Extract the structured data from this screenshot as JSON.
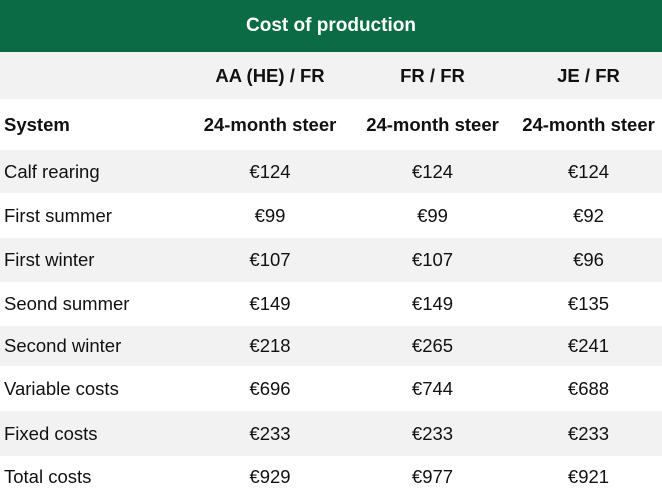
{
  "title": "Cost of production",
  "header_row": [
    "",
    "AA (HE) / FR",
    "FR / FR",
    "JE / FR"
  ],
  "system_row": [
    "System",
    "24-month steer",
    "24-month steer",
    "24-month steer"
  ],
  "rows": [
    {
      "label": "Calf rearing",
      "values": [
        "€124",
        "€124",
        "€124"
      ]
    },
    {
      "label": "First summer",
      "values": [
        "€99",
        "€99",
        "€92"
      ]
    },
    {
      "label": "First winter",
      "values": [
        "€107",
        "€107",
        "€96"
      ]
    },
    {
      "label": "Seond summer",
      "values": [
        "€149",
        "€149",
        "€135"
      ]
    },
    {
      "label": "Second winter",
      "values": [
        "€218",
        "€265",
        "€241"
      ]
    },
    {
      "label": "Variable costs",
      "values": [
        "€696",
        "€744",
        "€688"
      ]
    },
    {
      "label": "Fixed costs",
      "values": [
        "€233",
        "€233",
        "€233"
      ]
    },
    {
      "label": "Total costs",
      "values": [
        "€929",
        "€977",
        "€921"
      ]
    }
  ],
  "colors": {
    "header_bg": "#0b6b45",
    "stripe": "#f2f2f2"
  }
}
